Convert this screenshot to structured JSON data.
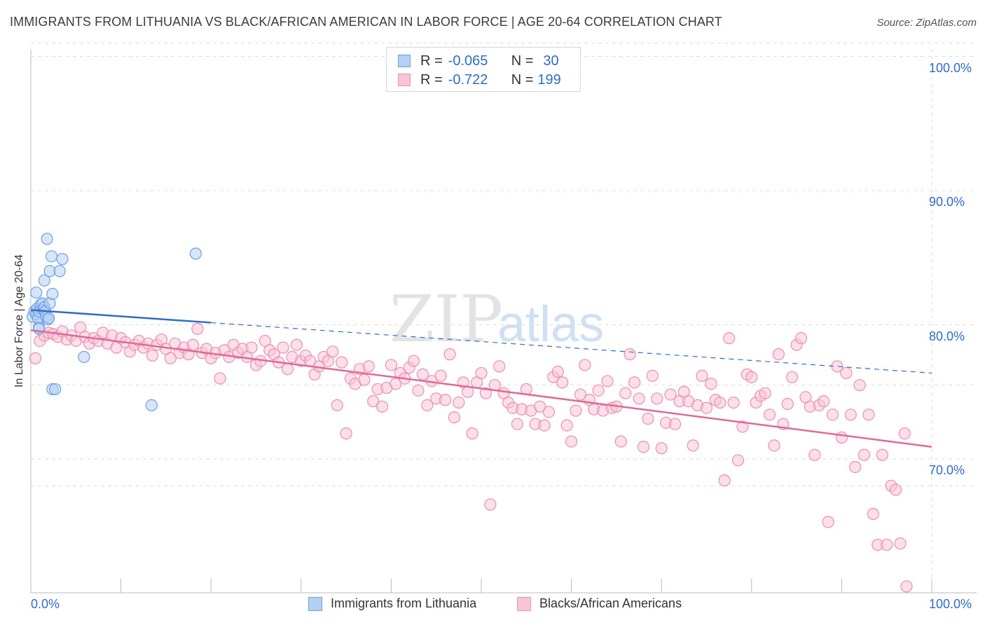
{
  "header": {
    "title": "IMMIGRANTS FROM LITHUANIA VS BLACK/AFRICAN AMERICAN IN LABOR FORCE | AGE 20-64 CORRELATION CHART",
    "source": "Source: ZipAtlas.com"
  },
  "watermark": {
    "zip": "ZIP",
    "atlas": "atlas"
  },
  "legend_stats": {
    "r_label": "R =",
    "n_label": "N =",
    "rows": [
      {
        "r": "-0.065",
        "n": "30"
      },
      {
        "r": "-0.722",
        "n": "199"
      }
    ]
  },
  "colors": {
    "blue_fill": "#b6d0f4",
    "blue_stroke": "#6c9fe0",
    "blue_line": "#2f6cc7",
    "pink_fill": "#f9c4d5",
    "pink_stroke": "#ea8fae",
    "pink_line": "#e06a96",
    "axis_text": "#2f6cc7",
    "grid": "#dddddd"
  },
  "chart_data": {
    "type": "scatter",
    "title": "IMMIGRANTS FROM LITHUANIA VS BLACK/AFRICAN AMERICAN IN LABOR FORCE | AGE 20-64 CORRELATION CHART",
    "xlabel": "",
    "ylabel": "In Labor Force | Age 20-64",
    "xlim": [
      0,
      100
    ],
    "ylim": [
      60,
      102
    ],
    "x_tick_labels": [
      "0.0%",
      "100.0%"
    ],
    "y_ticks": [
      70,
      80,
      90,
      100
    ],
    "y_tick_labels": [
      "70.0%",
      "80.0%",
      "90.0%",
      "100.0%"
    ],
    "grid": true,
    "legend_position": "bottom-center",
    "series": [
      {
        "name": "Immigrants from Lithuania",
        "color": "#b6d0f4",
        "r": -0.065,
        "n": 30,
        "trend": {
          "x0": 0,
          "y0": 81.1,
          "x1": 100,
          "y1": 76.4,
          "solid_until": 20
        },
        "points": [
          [
            0.2,
            80.6
          ],
          [
            0.4,
            81.0
          ],
          [
            0.6,
            80.8
          ],
          [
            0.7,
            81.2
          ],
          [
            0.8,
            80.5
          ],
          [
            0.9,
            79.8
          ],
          [
            0.9,
            79.7
          ],
          [
            0.9,
            81.0
          ],
          [
            1.1,
            81.5
          ],
          [
            1.3,
            81.6
          ],
          [
            1.4,
            81.1
          ],
          [
            1.5,
            81.3
          ],
          [
            1.6,
            81.0
          ],
          [
            1.7,
            80.6
          ],
          [
            1.9,
            80.4
          ],
          [
            2.0,
            80.5
          ],
          [
            2.1,
            81.6
          ],
          [
            0.6,
            82.4
          ],
          [
            1.5,
            83.3
          ],
          [
            1.8,
            86.4
          ],
          [
            2.1,
            84.0
          ],
          [
            2.3,
            85.1
          ],
          [
            2.4,
            82.3
          ],
          [
            3.2,
            84.0
          ],
          [
            3.5,
            84.9
          ],
          [
            18.3,
            85.3
          ],
          [
            2.4,
            75.2
          ],
          [
            2.7,
            75.2
          ],
          [
            5.9,
            77.6
          ],
          [
            13.4,
            74.0
          ]
        ]
      },
      {
        "name": "Blacks/African Americans",
        "color": "#f9c4d5",
        "r": -0.722,
        "n": 199,
        "trend": {
          "x0": 0,
          "y0": 79.6,
          "x1": 100,
          "y1": 70.9
        },
        "points": [
          [
            0.5,
            77.5
          ],
          [
            1,
            78.8
          ],
          [
            1.5,
            79.2
          ],
          [
            2,
            79.4
          ],
          [
            2.5,
            79.3
          ],
          [
            3,
            79.1
          ],
          [
            3.5,
            79.5
          ],
          [
            4,
            78.9
          ],
          [
            4.5,
            79.2
          ],
          [
            5,
            78.8
          ],
          [
            5.5,
            79.8
          ],
          [
            6,
            79.1
          ],
          [
            6.5,
            78.6
          ],
          [
            7,
            79.0
          ],
          [
            7.5,
            78.8
          ],
          [
            8,
            79.4
          ],
          [
            8.5,
            78.6
          ],
          [
            9,
            79.2
          ],
          [
            9.5,
            78.3
          ],
          [
            10,
            79.0
          ],
          [
            10.5,
            78.7
          ],
          [
            11,
            78.0
          ],
          [
            11.5,
            78.5
          ],
          [
            12,
            78.8
          ],
          [
            12.5,
            78.3
          ],
          [
            13,
            78.6
          ],
          [
            13.5,
            77.7
          ],
          [
            14,
            78.5
          ],
          [
            14.5,
            78.9
          ],
          [
            15,
            78.2
          ],
          [
            15.5,
            77.5
          ],
          [
            16,
            78.6
          ],
          [
            16.5,
            77.9
          ],
          [
            17,
            78.3
          ],
          [
            17.5,
            77.8
          ],
          [
            18,
            78.5
          ],
          [
            18.5,
            79.7
          ],
          [
            19,
            77.9
          ],
          [
            19.5,
            78.2
          ],
          [
            20,
            77.5
          ],
          [
            20.5,
            77.9
          ],
          [
            21,
            76.0
          ],
          [
            21.5,
            78.1
          ],
          [
            22,
            77.6
          ],
          [
            22.5,
            78.5
          ],
          [
            23,
            77.9
          ],
          [
            23.5,
            78.2
          ],
          [
            24,
            77.6
          ],
          [
            24.5,
            78.3
          ],
          [
            25,
            77.0
          ],
          [
            25.5,
            77.3
          ],
          [
            26,
            78.8
          ],
          [
            26.5,
            78.1
          ],
          [
            27,
            77.8
          ],
          [
            27.5,
            77.2
          ],
          [
            28,
            78.3
          ],
          [
            28.5,
            76.7
          ],
          [
            29,
            77.6
          ],
          [
            29.5,
            78.5
          ],
          [
            30,
            77.3
          ],
          [
            30.5,
            77.7
          ],
          [
            31,
            77.3
          ],
          [
            31.5,
            76.3
          ],
          [
            32,
            76.9
          ],
          [
            32.5,
            77.6
          ],
          [
            33,
            77.3
          ],
          [
            33.5,
            78.0
          ],
          [
            34,
            74.0
          ],
          [
            34.5,
            77.2
          ],
          [
            35,
            71.9
          ],
          [
            35.5,
            76.0
          ],
          [
            36,
            75.6
          ],
          [
            36.5,
            76.7
          ],
          [
            37,
            75.9
          ],
          [
            37.5,
            76.9
          ],
          [
            38,
            74.3
          ],
          [
            38.5,
            75.2
          ],
          [
            39,
            73.9
          ],
          [
            39.5,
            75.3
          ],
          [
            40,
            77.0
          ],
          [
            40.5,
            75.6
          ],
          [
            41,
            76.4
          ],
          [
            41.5,
            76.0
          ],
          [
            42,
            76.8
          ],
          [
            42.5,
            77.3
          ],
          [
            43,
            75.1
          ],
          [
            43.5,
            76.3
          ],
          [
            44,
            74.0
          ],
          [
            44.5,
            75.8
          ],
          [
            45,
            74.5
          ],
          [
            45.5,
            76.2
          ],
          [
            46,
            74.4
          ],
          [
            46.5,
            77.8
          ],
          [
            47,
            73.1
          ],
          [
            47.5,
            74.2
          ],
          [
            48,
            75.7
          ],
          [
            48.5,
            75.0
          ],
          [
            49,
            71.9
          ],
          [
            49.5,
            75.7
          ],
          [
            50,
            76.4
          ],
          [
            50.5,
            74.9
          ],
          [
            51,
            66.6
          ],
          [
            51.5,
            75.5
          ],
          [
            52,
            76.9
          ],
          [
            52.5,
            74.9
          ],
          [
            53,
            74.2
          ],
          [
            53.5,
            73.8
          ],
          [
            54,
            72.6
          ],
          [
            54.5,
            73.7
          ],
          [
            55,
            75.2
          ],
          [
            55.5,
            73.6
          ],
          [
            56,
            72.6
          ],
          [
            56.5,
            73.9
          ],
          [
            57,
            72.5
          ],
          [
            57.5,
            73.5
          ],
          [
            58,
            76.1
          ],
          [
            58.5,
            76.5
          ],
          [
            59,
            75.7
          ],
          [
            59.5,
            72.5
          ],
          [
            60,
            71.3
          ],
          [
            60.5,
            73.6
          ],
          [
            61,
            74.8
          ],
          [
            61.5,
            77.0
          ],
          [
            62,
            74.4
          ],
          [
            62.5,
            73.7
          ],
          [
            63,
            75.1
          ],
          [
            63.5,
            73.6
          ],
          [
            64,
            75.8
          ],
          [
            64.5,
            73.8
          ],
          [
            65,
            73.9
          ],
          [
            65.5,
            71.3
          ],
          [
            66,
            74.9
          ],
          [
            66.5,
            77.8
          ],
          [
            67,
            75.7
          ],
          [
            67.5,
            74.5
          ],
          [
            68,
            70.9
          ],
          [
            68.5,
            73.0
          ],
          [
            69,
            76.2
          ],
          [
            69.5,
            74.5
          ],
          [
            70,
            70.8
          ],
          [
            70.5,
            72.7
          ],
          [
            71,
            74.8
          ],
          [
            71.5,
            72.6
          ],
          [
            72,
            74.3
          ],
          [
            72.5,
            75.0
          ],
          [
            73,
            74.3
          ],
          [
            73.5,
            71.0
          ],
          [
            74,
            74.0
          ],
          [
            74.5,
            76.2
          ],
          [
            75,
            73.8
          ],
          [
            75.5,
            75.6
          ],
          [
            76,
            74.4
          ],
          [
            76.5,
            74.2
          ],
          [
            77,
            68.4
          ],
          [
            77.5,
            79.0
          ],
          [
            78,
            74.2
          ],
          [
            78.5,
            69.9
          ],
          [
            79,
            72.4
          ],
          [
            79.5,
            76.3
          ],
          [
            80,
            76.1
          ],
          [
            80.5,
            74.2
          ],
          [
            81,
            74.7
          ],
          [
            81.5,
            74.9
          ],
          [
            82,
            73.3
          ],
          [
            82.5,
            71.0
          ],
          [
            83,
            77.8
          ],
          [
            83.5,
            72.6
          ],
          [
            84,
            74.1
          ],
          [
            84.5,
            76.1
          ],
          [
            85,
            78.5
          ],
          [
            85.5,
            79.0
          ],
          [
            86,
            74.6
          ],
          [
            86.5,
            73.9
          ],
          [
            87,
            70.3
          ],
          [
            87.5,
            74.0
          ],
          [
            88,
            74.3
          ],
          [
            88.5,
            65.3
          ],
          [
            89,
            73.3
          ],
          [
            89.5,
            76.9
          ],
          [
            90,
            71.6
          ],
          [
            90.5,
            76.4
          ],
          [
            91,
            73.3
          ],
          [
            91.5,
            69.4
          ],
          [
            92,
            75.5
          ],
          [
            92.5,
            70.3
          ],
          [
            93,
            73.3
          ],
          [
            93.5,
            65.9
          ],
          [
            94,
            63.6
          ],
          [
            94.5,
            70.3
          ],
          [
            95,
            63.6
          ],
          [
            95.5,
            68.0
          ],
          [
            96,
            67.7
          ],
          [
            96.5,
            63.7
          ],
          [
            97,
            71.9
          ],
          [
            97.2,
            60.5
          ]
        ]
      }
    ]
  },
  "bottom_legend": {
    "items": [
      {
        "label": "Immigrants from Lithuania"
      },
      {
        "label": "Blacks/African Americans"
      }
    ]
  }
}
